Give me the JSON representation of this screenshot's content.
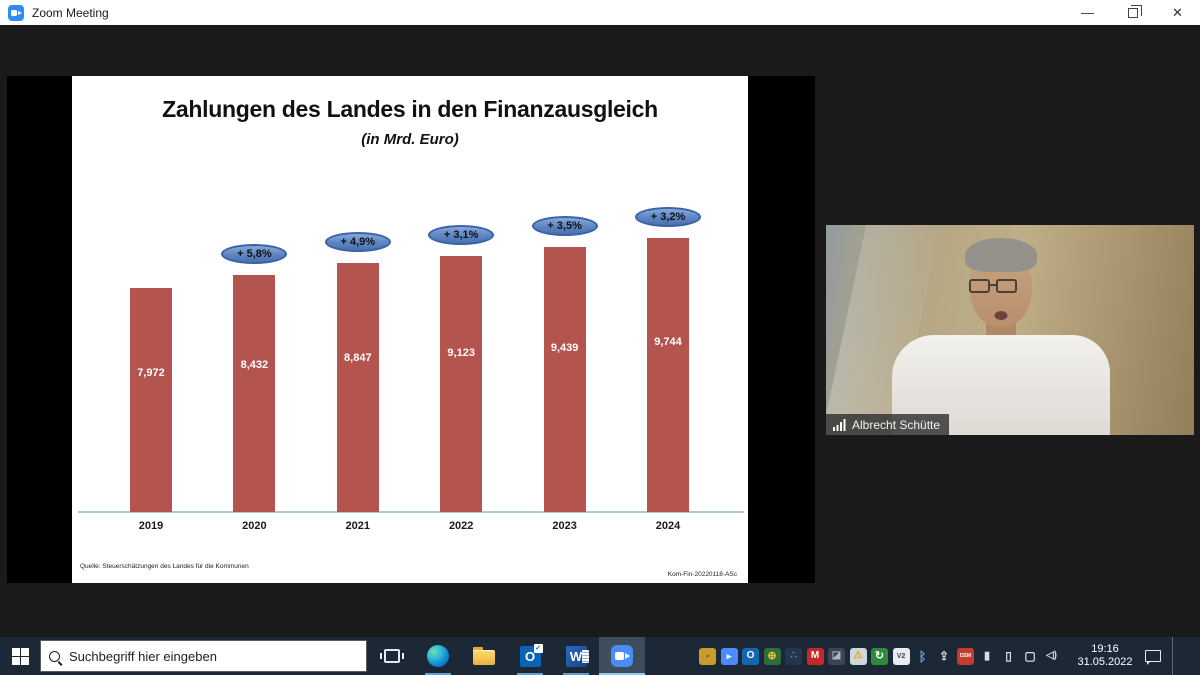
{
  "window": {
    "title": "Zoom Meeting",
    "controls": {
      "minimize_glyph": "—",
      "close_glyph": "✕"
    }
  },
  "slide": {
    "source": "Quelle: Steuerschätzungen des Landes für die Kommunen",
    "doc_id": "Kom-Fin-20220118-ASc"
  },
  "chart_data": {
    "type": "bar",
    "title": "Zahlungen des Landes in den Finanzausgleich",
    "subtitle": "(in Mrd. Euro)",
    "categories": [
      "2019",
      "2020",
      "2021",
      "2022",
      "2023",
      "2024"
    ],
    "values": [
      7.972,
      8.432,
      8.847,
      9.123,
      9.439,
      9.744
    ],
    "value_labels": [
      "7,972",
      "8,432",
      "8,847",
      "9,123",
      "9,439",
      "9,744"
    ],
    "growth_labels": [
      "",
      "+ 5,8%",
      "+ 4,9%",
      "+ 3,1%",
      "+ 3,5%",
      "+ 3,2%"
    ],
    "ylim": [
      0,
      10
    ],
    "bar_color": "#b4544e",
    "bubble_color": "#5d85c2",
    "grid": false,
    "legend": false
  },
  "webcam": {
    "participant_name": "Albrecht Schütte"
  },
  "taskbar": {
    "search_placeholder": "Suchbegriff hier eingeben",
    "apps": [
      {
        "name": "task-view-button",
        "kind": "taskview",
        "underline": false,
        "active": false
      },
      {
        "name": "edge-button",
        "kind": "edge",
        "underline": true,
        "active": false
      },
      {
        "name": "file-explorer-button",
        "kind": "explorer",
        "underline": false,
        "active": false
      },
      {
        "name": "outlook-button",
        "kind": "outlook",
        "letter": "O",
        "underline": true,
        "active": false
      },
      {
        "name": "word-button",
        "kind": "word",
        "letter": "W",
        "underline": true,
        "active": false
      },
      {
        "name": "zoom-button",
        "kind": "zoom",
        "underline": true,
        "active": true
      }
    ],
    "tray_icons": [
      {
        "name": "lock-icon",
        "glyph": "▪",
        "bg": "#c79b2e",
        "fg": "#7a5c13"
      },
      {
        "name": "zoom-tray-icon",
        "glyph": "▸",
        "bg": "#4a8cff",
        "fg": "#ffffff"
      },
      {
        "name": "outlook-tray-icon",
        "glyph": "O",
        "bg": "#1266b4",
        "fg": "#ffffff",
        "fs": "10px"
      },
      {
        "name": "globe-lock-icon",
        "glyph": "⊕",
        "bg": "#2f6e3a",
        "fg": "#f0c23c",
        "fs": "11px"
      },
      {
        "name": "molecule-icon",
        "glyph": "∴",
        "bg": "#24364d",
        "fg": "#5f8fd0",
        "fs": "10px"
      },
      {
        "name": "mcafee-shield-icon",
        "glyph": "M",
        "bg": "#c62828",
        "fg": "#ffffff",
        "fs": "10px"
      },
      {
        "name": "remote-app-icon",
        "glyph": "◪",
        "bg": "#3a4750",
        "fg": "#aab8c2",
        "fs": "10px"
      },
      {
        "name": "defender-shield-icon",
        "glyph": "⚠",
        "bg": "#cfd8dc",
        "fg": "#e8a013",
        "fs": "10px"
      },
      {
        "name": "update-status-icon",
        "glyph": "↻",
        "bg": "#2e8b3a",
        "fg": "#ffffff",
        "fs": "11px"
      },
      {
        "name": "v2-icon",
        "glyph": "V2",
        "bg": "#e8ecef",
        "fg": "#3a4750",
        "fs": "7px"
      },
      {
        "name": "bluetooth-icon",
        "glyph": "ᛒ",
        "bg": "transparent",
        "fg": "#5aa3e8",
        "fs": "13px"
      },
      {
        "name": "usb-icon",
        "glyph": "⇪",
        "bg": "transparent",
        "fg": "#d8dde2",
        "fs": "12px"
      },
      {
        "name": "dsm-icon",
        "glyph": "DSM",
        "bg": "#c43c2e",
        "fg": "#ffffff",
        "fs": "5px"
      },
      {
        "name": "microphone-icon",
        "glyph": "▮",
        "bg": "transparent",
        "fg": "#d8dde2",
        "fs": "11px"
      },
      {
        "name": "battery-icon",
        "glyph": "▯",
        "bg": "transparent",
        "fg": "#d8dde2",
        "fs": "12px"
      },
      {
        "name": "display-icon",
        "glyph": "▢",
        "bg": "transparent",
        "fg": "#d8dde2",
        "fs": "12px"
      },
      {
        "name": "volume-icon",
        "glyph": "◁)",
        "bg": "transparent",
        "fg": "#d8dde2",
        "fs": "10px"
      }
    ],
    "clock": {
      "time": "19:16",
      "date": "31.05.2022"
    }
  }
}
